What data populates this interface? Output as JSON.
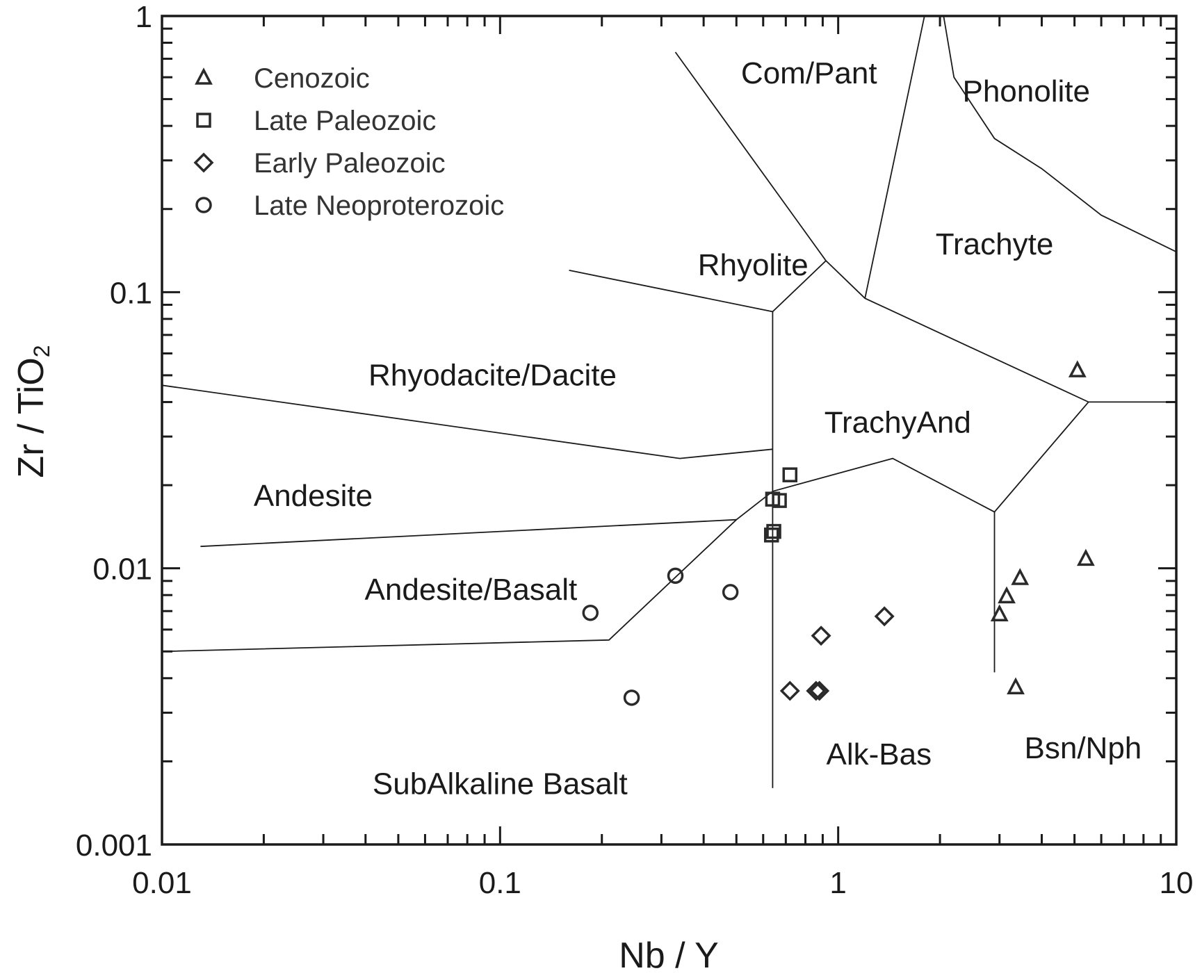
{
  "chart_data": {
    "type": "scatter",
    "xlabel": "Nb / Y",
    "ylabel_main": "Zr / TiO",
    "ylabel_sub": "2",
    "x_scale": "log",
    "y_scale": "log",
    "xlim": [
      0.01,
      10
    ],
    "ylim": [
      0.001,
      1
    ],
    "x_ticks": [
      {
        "value": 0.01,
        "label": "0.01"
      },
      {
        "value": 0.1,
        "label": "0.1"
      },
      {
        "value": 1,
        "label": "1"
      },
      {
        "value": 10,
        "label": "10"
      }
    ],
    "y_ticks": [
      {
        "value": 0.001,
        "label": "0.001"
      },
      {
        "value": 0.01,
        "label": "0.01"
      },
      {
        "value": 0.1,
        "label": "0.1"
      },
      {
        "value": 1,
        "label": "1"
      }
    ],
    "grid": false,
    "legend_position": "top-left",
    "series": [
      {
        "name": "Cenozoic",
        "marker": "triangle",
        "points": [
          [
            5.1,
            0.052
          ],
          [
            5.4,
            0.0108
          ],
          [
            3.45,
            0.0092
          ],
          [
            3.15,
            0.0079
          ],
          [
            3.0,
            0.0068
          ],
          [
            3.35,
            0.0037
          ]
        ]
      },
      {
        "name": "Late Paleozoic",
        "marker": "square",
        "points": [
          [
            0.72,
            0.0218
          ],
          [
            0.67,
            0.0176
          ],
          [
            0.64,
            0.0178
          ],
          [
            0.645,
            0.0136
          ],
          [
            0.635,
            0.0132
          ]
        ]
      },
      {
        "name": "Early Paleozoic",
        "marker": "diamond",
        "points": [
          [
            1.37,
            0.0067
          ],
          [
            0.89,
            0.0057
          ],
          [
            0.72,
            0.0036
          ],
          [
            0.86,
            0.0036
          ],
          [
            0.88,
            0.0036
          ]
        ]
      },
      {
        "name": "Late Neoproterozoic",
        "marker": "circle",
        "points": [
          [
            0.185,
            0.0069
          ],
          [
            0.33,
            0.0094
          ],
          [
            0.48,
            0.0082
          ],
          [
            0.245,
            0.0034
          ]
        ]
      }
    ],
    "boundaries": [
      [
        [
          0.33,
          0.74
        ],
        [
          0.92,
          0.13
        ],
        [
          1.2,
          0.095
        ],
        [
          5.5,
          0.04
        ],
        [
          10,
          0.04
        ]
      ],
      [
        [
          1.8,
          1.0
        ],
        [
          1.2,
          0.095
        ]
      ],
      [
        [
          2.05,
          1.0
        ],
        [
          2.2,
          0.6
        ],
        [
          2.9,
          0.36
        ],
        [
          4.0,
          0.28
        ],
        [
          6.0,
          0.19
        ],
        [
          10,
          0.14
        ]
      ],
      [
        [
          0.16,
          0.12
        ],
        [
          0.64,
          0.085
        ],
        [
          0.92,
          0.13
        ]
      ],
      [
        [
          0.64,
          0.085
        ],
        [
          0.64,
          0.0016
        ]
      ],
      [
        [
          0.01,
          0.046
        ],
        [
          0.34,
          0.025
        ],
        [
          0.64,
          0.027
        ]
      ],
      [
        [
          0.013,
          0.012
        ],
        [
          0.5,
          0.015
        ]
      ],
      [
        [
          0.01,
          0.005
        ],
        [
          0.21,
          0.0055
        ],
        [
          0.5,
          0.015
        ],
        [
          0.64,
          0.019
        ],
        [
          1.45,
          0.025
        ],
        [
          2.9,
          0.016
        ],
        [
          5.5,
          0.04
        ]
      ],
      [
        [
          2.9,
          0.016
        ],
        [
          2.9,
          0.0042
        ]
      ]
    ],
    "field_labels": [
      {
        "text": "Com/Pant",
        "x": 0.82,
        "y": 0.57
      },
      {
        "text": "Phonolite",
        "x": 3.6,
        "y": 0.49
      },
      {
        "text": "Rhyolite",
        "x": 0.56,
        "y": 0.115
      },
      {
        "text": "Trachyte",
        "x": 2.9,
        "y": 0.137
      },
      {
        "text": "Rhyodacite/Dacite",
        "x": 0.095,
        "y": 0.046
      },
      {
        "text": "TrachyAnd",
        "x": 1.5,
        "y": 0.031
      },
      {
        "text": "Andesite",
        "x": 0.028,
        "y": 0.0168
      },
      {
        "text": "Andesite/Basalt",
        "x": 0.082,
        "y": 0.0077
      },
      {
        "text": "Alk-Bas",
        "x": 1.32,
        "y": 0.00195
      },
      {
        "text": "Bsn/Nph",
        "x": 5.3,
        "y": 0.00205
      },
      {
        "text": "SubAlkaline Basalt",
        "x": 0.1,
        "y": 0.00152
      }
    ]
  }
}
